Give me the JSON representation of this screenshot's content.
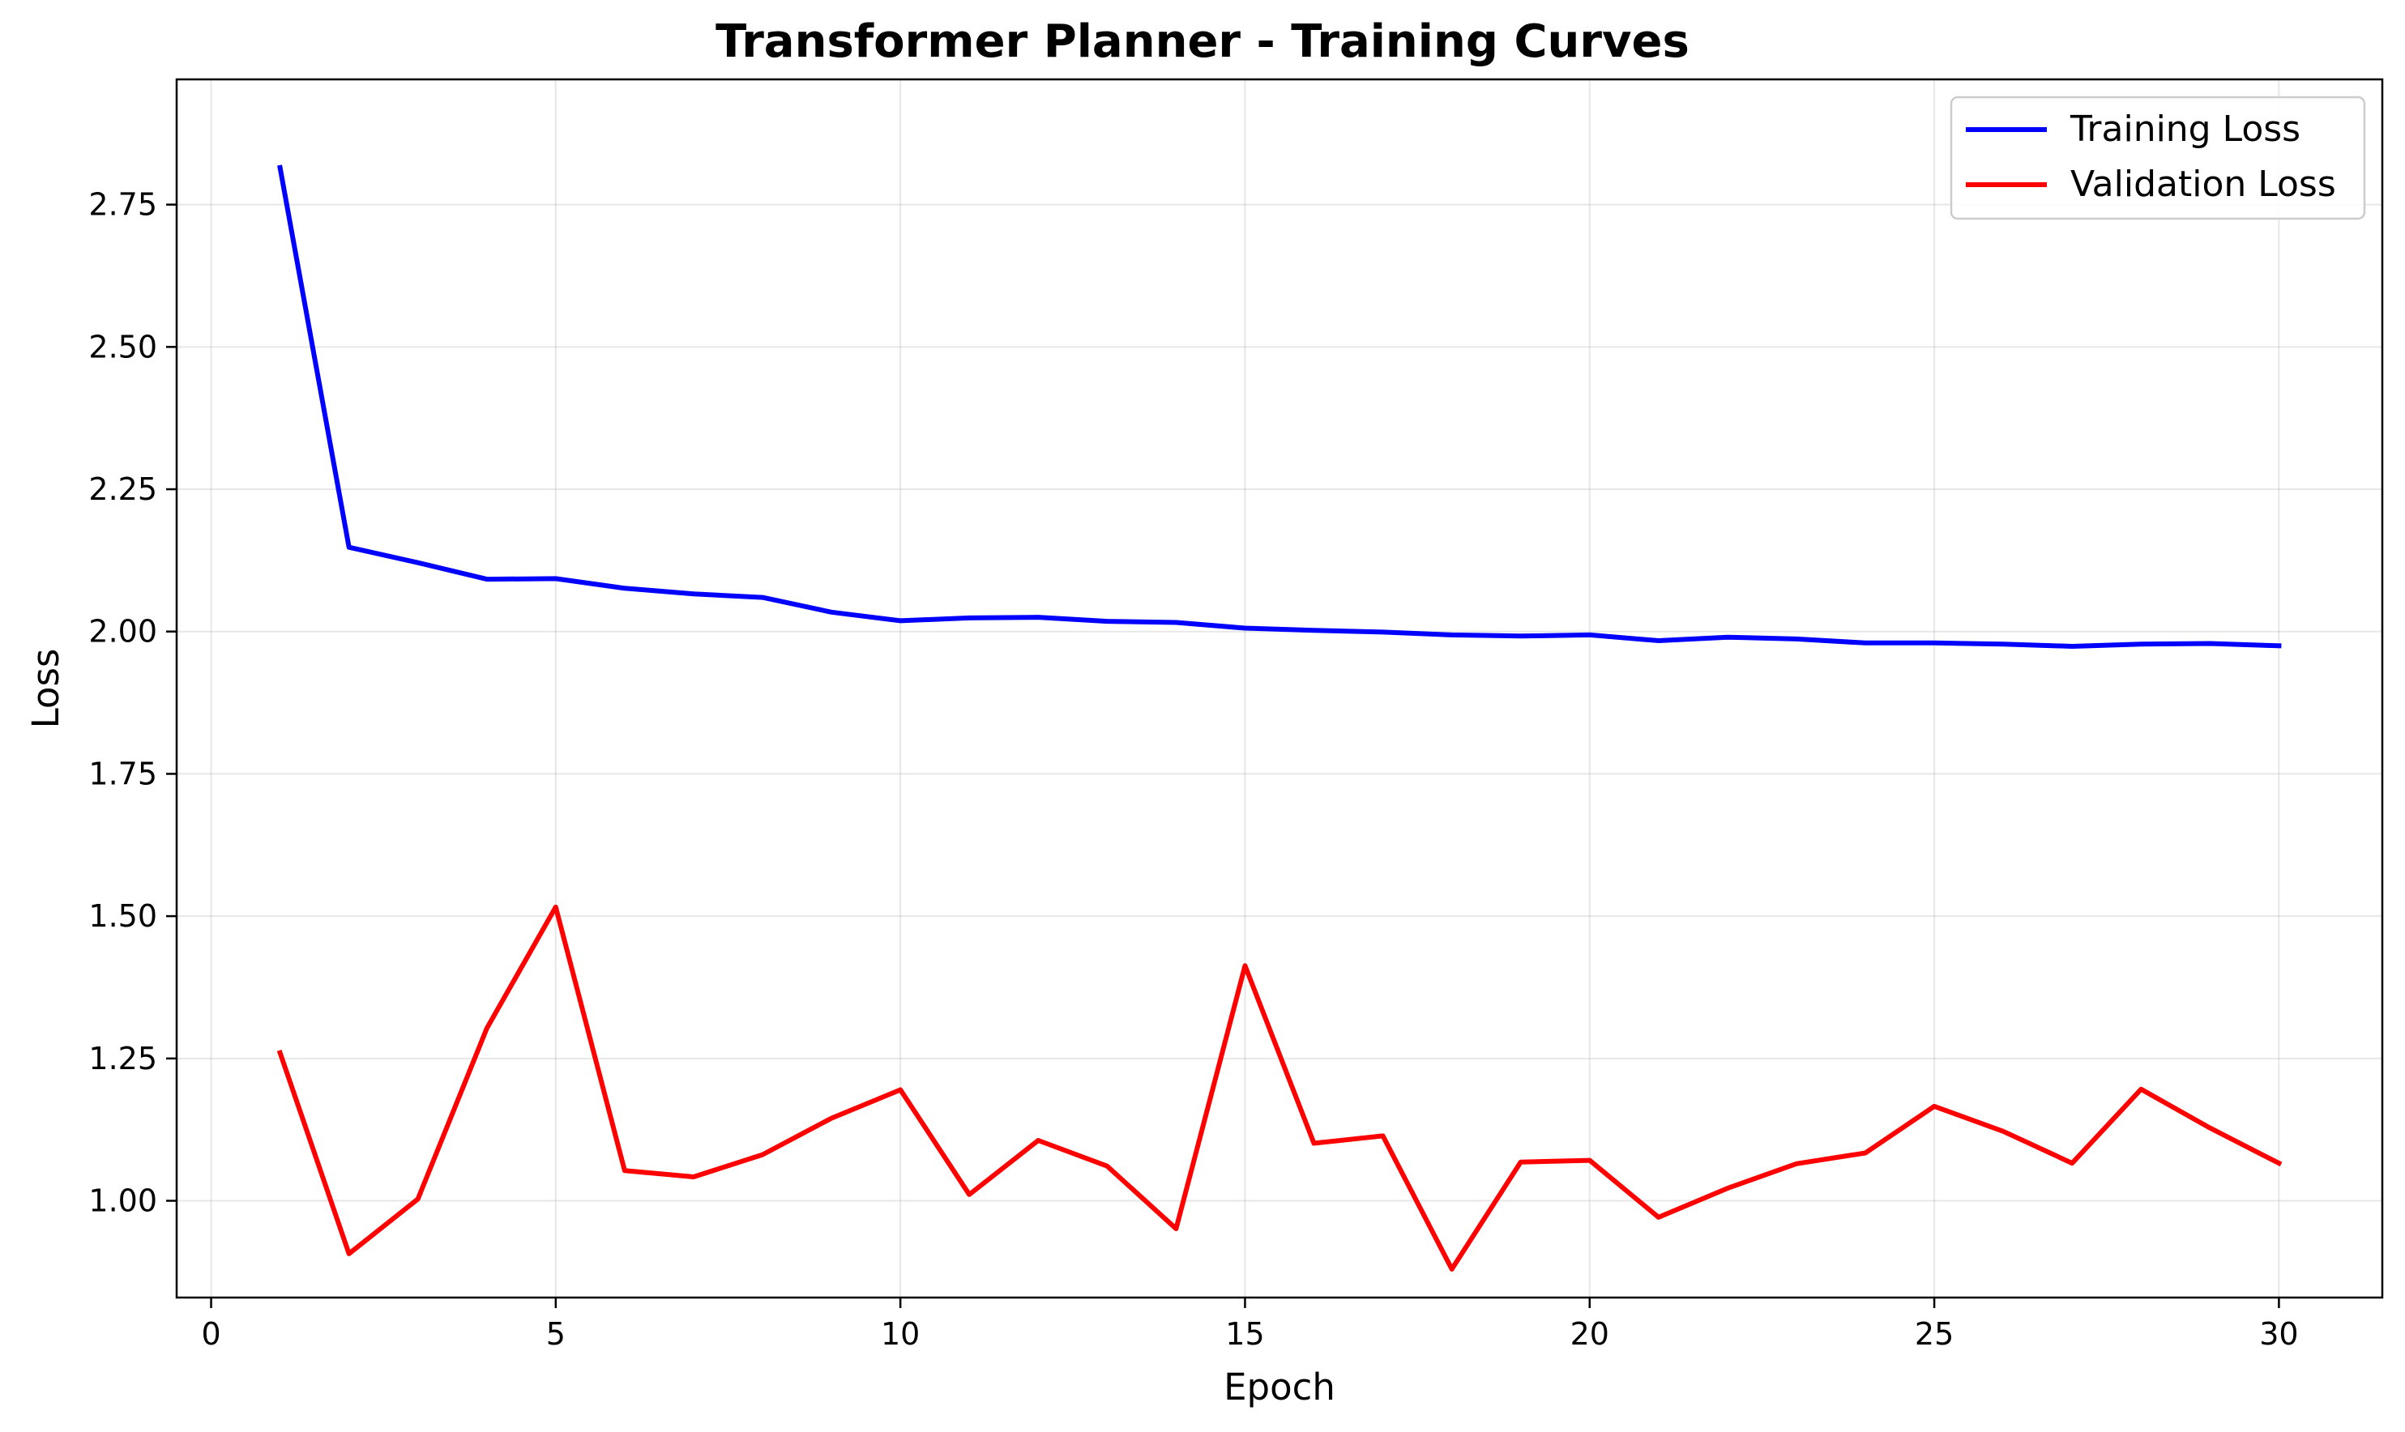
{
  "chart_data": {
    "type": "line",
    "title": "Transformer Planner - Training Curves",
    "xlabel": "Epoch",
    "ylabel": "Loss",
    "xlim": [
      -0.5,
      31.5
    ],
    "ylim": [
      0.83,
      2.97
    ],
    "xticks": [
      0,
      5,
      10,
      15,
      20,
      25,
      30
    ],
    "yticks": [
      1.0,
      1.25,
      1.5,
      1.75,
      2.0,
      2.25,
      2.5,
      2.75
    ],
    "ytick_labels": [
      "1.00",
      "1.25",
      "1.50",
      "1.75",
      "2.00",
      "2.25",
      "2.50",
      "2.75"
    ],
    "grid": true,
    "legend_position": "top-right",
    "x": [
      1,
      2,
      3,
      4,
      5,
      6,
      7,
      8,
      9,
      10,
      11,
      12,
      13,
      14,
      15,
      16,
      17,
      18,
      19,
      20,
      21,
      22,
      23,
      24,
      25,
      26,
      27,
      28,
      29,
      30
    ],
    "series": [
      {
        "name": "Training Loss",
        "color": "#0000ff",
        "values": [
          2.815,
          2.148,
          2.121,
          2.092,
          2.093,
          2.076,
          2.066,
          2.06,
          2.034,
          2.019,
          2.024,
          2.025,
          2.018,
          2.016,
          2.006,
          2.002,
          1.999,
          1.994,
          1.992,
          1.994,
          1.984,
          1.99,
          1.987,
          1.98,
          1.98,
          1.978,
          1.974,
          1.978,
          1.979,
          1.975
        ]
      },
      {
        "name": "Validation Loss",
        "color": "#ff0000",
        "values": [
          1.26,
          0.907,
          1.003,
          1.303,
          1.516,
          1.053,
          1.042,
          1.081,
          1.145,
          1.195,
          1.011,
          1.106,
          1.061,
          0.951,
          1.413,
          1.101,
          1.114,
          0.88,
          1.068,
          1.071,
          0.971,
          1.022,
          1.065,
          1.084,
          1.166,
          1.122,
          1.066,
          1.196,
          1.128,
          1.066
        ]
      }
    ]
  }
}
